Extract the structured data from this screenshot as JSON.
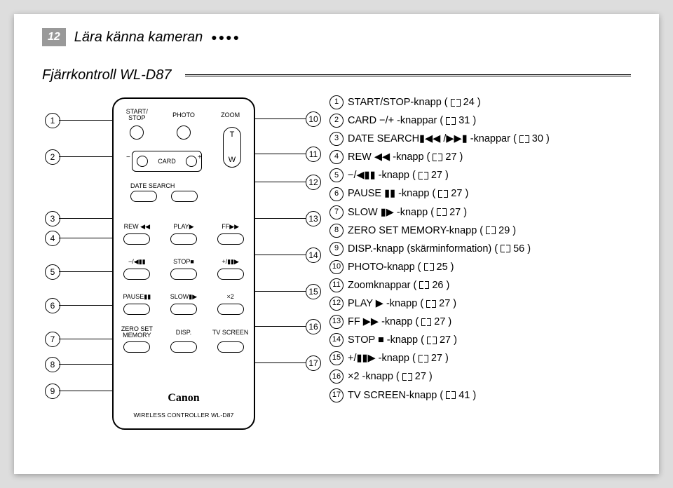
{
  "header": {
    "page_number": "12",
    "breadcrumb": "Lära känna kameran",
    "dots": "●●●●"
  },
  "section_title": "Fjärrkontroll WL-D87",
  "remote": {
    "row1": {
      "c1": "START/\nSTOP",
      "c2": "PHOTO",
      "c3": "ZOOM"
    },
    "zoom_top": "T",
    "zoom_bottom": "W",
    "card_minus": "−",
    "card_label": "CARD",
    "card_plus": "+",
    "date_search": "DATE SEARCH",
    "row_play": {
      "c1": "REW ◀◀",
      "c2": "PLAY▶",
      "c3": "FF▶▶"
    },
    "row_stop": {
      "c1": "−/◀▮▮",
      "c2": "STOP■",
      "c3": "+/▮▮▶"
    },
    "row_slow": {
      "c1": "PAUSE▮▮",
      "c2": "SLOW▮▶",
      "c3": "×2"
    },
    "row_bottom": {
      "c1": "ZERO SET\nMEMORY",
      "c2": "DISP.",
      "c3": "TV SCREEN"
    },
    "brand": "Canon",
    "controller": "WIRELESS CONTROLLER WL-D87"
  },
  "left_callouts": [
    "1",
    "2",
    "3",
    "4",
    "5",
    "6",
    "7",
    "8",
    "9"
  ],
  "right_callouts": [
    "10",
    "11",
    "12",
    "13",
    "14",
    "15",
    "16",
    "17"
  ],
  "list": [
    {
      "n": "1",
      "pre": "START/STOP-knapp (",
      "pg": "24",
      "post": ")"
    },
    {
      "n": "2",
      "pre": "CARD −/+ -knappar (",
      "pg": "31",
      "post": ")"
    },
    {
      "n": "3",
      "pre": "DATE SEARCH▮◀◀ /▶▶▮ -knappar (",
      "pg": "30",
      "post": ")"
    },
    {
      "n": "4",
      "pre": "REW ◀◀ -knapp (",
      "pg": "27",
      "post": ")"
    },
    {
      "n": "5",
      "pre": "−/◀▮▮ -knapp (",
      "pg": "27",
      "post": ")"
    },
    {
      "n": "6",
      "pre": "PAUSE ▮▮ -knapp (",
      "pg": "27",
      "post": ")"
    },
    {
      "n": "7",
      "pre": "SLOW ▮▶ -knapp (",
      "pg": "27",
      "post": ")"
    },
    {
      "n": "8",
      "pre": "ZERO SET MEMORY-knapp (",
      "pg": "29",
      "post": ")"
    },
    {
      "n": "9",
      "pre": "DISP.-knapp (skärminformation) (",
      "pg": "56",
      "post": ")"
    },
    {
      "n": "10",
      "pre": "PHOTO-knapp (",
      "pg": "25",
      "post": ")"
    },
    {
      "n": "11",
      "pre": "Zoomknappar (",
      "pg": "26",
      "post": ")"
    },
    {
      "n": "12",
      "pre": "PLAY ▶ -knapp (",
      "pg": "27",
      "post": ")"
    },
    {
      "n": "13",
      "pre": "FF ▶▶ -knapp (",
      "pg": "27",
      "post": ")"
    },
    {
      "n": "14",
      "pre": "STOP ■ -knapp (",
      "pg": "27",
      "post": ")"
    },
    {
      "n": "15",
      "pre": "+/▮▮▶ -knapp (",
      "pg": "27",
      "post": ")"
    },
    {
      "n": "16",
      "pre": "×2 -knapp (",
      "pg": "27",
      "post": ")"
    },
    {
      "n": "17",
      "pre": "TV SCREEN-knapp (",
      "pg": "41",
      "post": ")"
    }
  ]
}
